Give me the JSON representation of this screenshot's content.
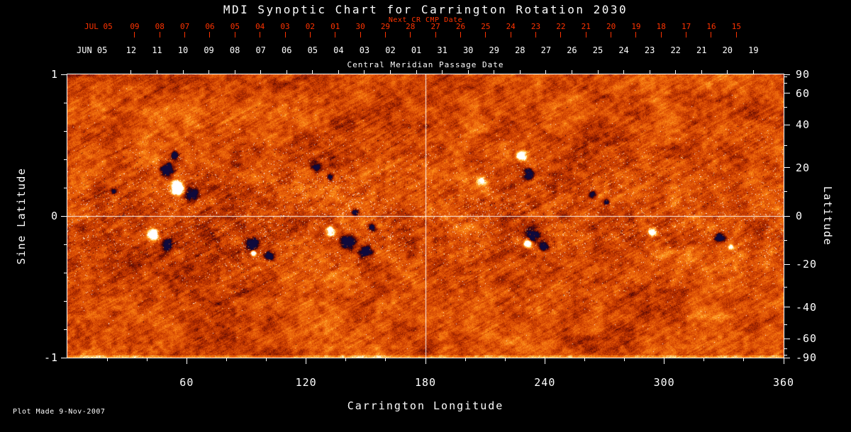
{
  "title": "MDI Synoptic Chart for Carrington Rotation 2030",
  "footer": {
    "plot_made": "Plot Made  9-Nov-2007"
  },
  "chart_data": {
    "type": "heatmap",
    "title": "MDI Synoptic Chart for Carrington Rotation 2030",
    "rotation": 2030,
    "xlabel": "Carrington Longitude",
    "ylabel_left": "Sine Latitude",
    "ylabel_right": "Latitude",
    "xlim": [
      0,
      360
    ],
    "ylim_sine": [
      -1,
      1
    ],
    "x_ticks": [
      60,
      120,
      180,
      240,
      300,
      360
    ],
    "x_minor_step": 20,
    "left_ticks": [
      1,
      0,
      -1
    ],
    "left_minor_ticks": [
      0.8,
      0.6,
      0.4,
      0.2,
      -0.2,
      -0.4,
      -0.6,
      -0.8
    ],
    "right_ticks": [
      90,
      60,
      40,
      20,
      0,
      -20,
      -40,
      -60,
      -90
    ],
    "right_minor_ticks": [
      80,
      70,
      50,
      30,
      10,
      -10,
      -30,
      -50,
      -70,
      -80
    ],
    "grid_lines": {
      "vertical_lon": 180,
      "horizontal_slat": 0
    },
    "top_axes": {
      "next_cr": {
        "label": "Next CR CMP Date",
        "month": "JUL 05",
        "days": [
          "09",
          "08",
          "07",
          "06",
          "05",
          "04",
          "03",
          "02",
          "01",
          "30",
          "29",
          "28",
          "27",
          "26",
          "25",
          "24",
          "23",
          "22",
          "21",
          "20",
          "19",
          "18",
          "17",
          "16",
          "15"
        ],
        "start_frac": 0.094,
        "step_frac": 0.035,
        "color": "#ff3300"
      },
      "cmp": {
        "label": "Central Meridian Passage Date",
        "month": "JUN 05",
        "days": [
          "12",
          "11",
          "10",
          "09",
          "08",
          "07",
          "06",
          "05",
          "04",
          "03",
          "02",
          "01",
          "31",
          "30",
          "29",
          "28",
          "27",
          "26",
          "25",
          "24",
          "23",
          "22",
          "21",
          "20",
          "19"
        ],
        "start_frac": 0.089,
        "step_frac": 0.0362,
        "color": "#ffffff"
      }
    },
    "colors": {
      "background": "#000000",
      "text": "#ffffff",
      "accent_red": "#ff3300",
      "frame": "#ffffff"
    },
    "colormap": [
      [
        0.0,
        15,
        10,
        60
      ],
      [
        0.08,
        20,
        5,
        40
      ],
      [
        0.18,
        70,
        5,
        10
      ],
      [
        0.3,
        135,
        25,
        0
      ],
      [
        0.44,
        195,
        55,
        0
      ],
      [
        0.58,
        230,
        90,
        8
      ],
      [
        0.72,
        250,
        130,
        20
      ],
      [
        0.82,
        255,
        175,
        55
      ],
      [
        0.9,
        255,
        220,
        120
      ],
      [
        0.96,
        255,
        245,
        205
      ],
      [
        1.0,
        255,
        255,
        255
      ]
    ],
    "active_regions": [
      {
        "lon": 49.9,
        "slat": 0.33,
        "r": 14,
        "s": -1.0
      },
      {
        "lon": 53.5,
        "slat": 0.43,
        "r": 8,
        "s": -0.8
      },
      {
        "lon": 55.2,
        "slat": 0.2,
        "r": 12,
        "s": 1.2
      },
      {
        "lon": 62.4,
        "slat": 0.15,
        "r": 12,
        "s": -0.95
      },
      {
        "lon": 42.8,
        "slat": -0.13,
        "r": 10,
        "s": 1.2
      },
      {
        "lon": 49.9,
        "slat": -0.2,
        "r": 10,
        "s": -0.9
      },
      {
        "lon": 23.2,
        "slat": 0.18,
        "r": 6,
        "s": -0.6
      },
      {
        "lon": 92.7,
        "slat": -0.2,
        "r": 12,
        "s": -0.9
      },
      {
        "lon": 101.6,
        "slat": -0.28,
        "r": 9,
        "s": -0.8
      },
      {
        "lon": 93.4,
        "slat": -0.26,
        "r": 5,
        "s": 0.9
      },
      {
        "lon": 124.8,
        "slat": 0.35,
        "r": 9,
        "s": -0.8
      },
      {
        "lon": 131.9,
        "slat": 0.28,
        "r": 7,
        "s": -0.7
      },
      {
        "lon": 131.9,
        "slat": -0.1,
        "r": 9,
        "s": 1.1
      },
      {
        "lon": 140.8,
        "slat": -0.18,
        "r": 13,
        "s": -0.95
      },
      {
        "lon": 149.7,
        "slat": -0.25,
        "r": 12,
        "s": -0.9
      },
      {
        "lon": 144.4,
        "slat": 0.03,
        "r": 8,
        "s": -0.7
      },
      {
        "lon": 153.3,
        "slat": -0.08,
        "r": 8,
        "s": -0.75
      },
      {
        "lon": 208.5,
        "slat": 0.25,
        "r": 10,
        "s": 0.45
      },
      {
        "lon": 228.1,
        "slat": 0.43,
        "r": 9,
        "s": 1.1
      },
      {
        "lon": 231.7,
        "slat": 0.3,
        "r": 10,
        "s": -0.9
      },
      {
        "lon": 233.5,
        "slat": -0.13,
        "r": 13,
        "s": -0.95
      },
      {
        "lon": 231.7,
        "slat": -0.19,
        "r": 8,
        "s": 1.1
      },
      {
        "lon": 239.5,
        "slat": -0.21,
        "r": 9,
        "s": -0.8
      },
      {
        "lon": 263.8,
        "slat": 0.15,
        "r": 8,
        "s": -0.7
      },
      {
        "lon": 270.9,
        "slat": 0.1,
        "r": 6,
        "s": -0.6
      },
      {
        "lon": 294.1,
        "slat": -0.11,
        "r": 8,
        "s": 1.1
      },
      {
        "lon": 327.9,
        "slat": -0.15,
        "r": 9,
        "s": -0.8
      },
      {
        "lon": 333.3,
        "slat": -0.22,
        "r": 5,
        "s": 0.7
      }
    ]
  }
}
